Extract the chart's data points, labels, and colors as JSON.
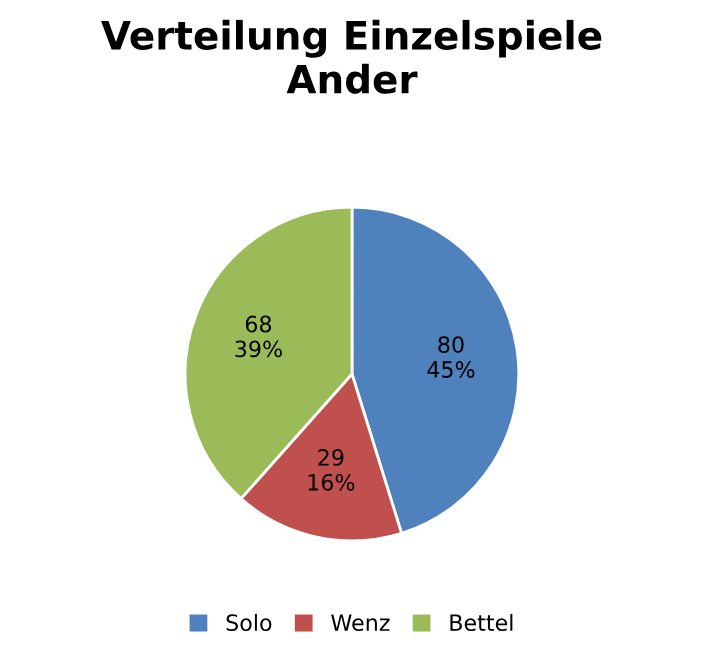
{
  "chart_data": {
    "type": "pie",
    "title": "Verteilung Einzelspiele\nAnder",
    "categories": [
      "Solo",
      "Wenz",
      "Bettel"
    ],
    "values": [
      80,
      29,
      68
    ],
    "colors": [
      "#4f81bd",
      "#c0504d",
      "#9bbb59"
    ],
    "value_labels": [
      "80\n45%",
      "29\n16%",
      "68\n39%"
    ],
    "legend": "bottom"
  }
}
